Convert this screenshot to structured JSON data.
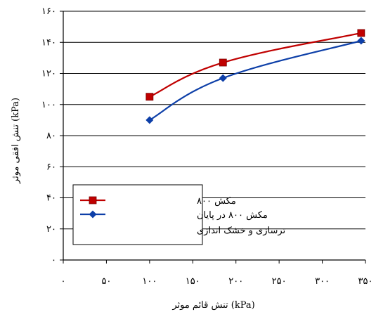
{
  "chart_data": {
    "type": "line",
    "title": "",
    "xlabel": "تنش قائم موثر (kPa)",
    "ylabel": "تنش افقی موثر (kPa)",
    "xlim": [
      0,
      350
    ],
    "ylim": [
      0,
      160
    ],
    "x_ticks": [
      0,
      50,
      100,
      150,
      200,
      250,
      300,
      350
    ],
    "x_tick_labels": [
      "۰",
      "۵۰",
      "۱۰۰",
      "۱۵۰",
      "۲۰۰",
      "۲۵۰",
      "۳۰۰",
      "۳۵۰"
    ],
    "y_ticks": [
      0,
      20,
      40,
      60,
      80,
      100,
      120,
      140,
      160
    ],
    "y_tick_labels": [
      "۰",
      "۲۰",
      "۴۰",
      "۶۰",
      "۸۰",
      "۱۰۰",
      "۱۲۰",
      "۱۴۰",
      "۱۶۰"
    ],
    "grid": "horizontal",
    "legend_position": "bottom-left",
    "series": [
      {
        "name": "مکش ۸۰۰",
        "name_lines": [
          "مکش ۸۰۰"
        ],
        "color": "#c00000",
        "marker": "square",
        "x": [
          100,
          185,
          345
        ],
        "y": [
          105,
          127,
          146
        ]
      },
      {
        "name": "مکش ۸۰۰ در پایان ترسازی و خشک اندازی",
        "name_lines": [
          "مکش ۸۰۰ در پایان",
          "ترسازی و خشک اندازی"
        ],
        "color": "#0d3fa8",
        "marker": "diamond",
        "x": [
          100,
          185,
          345
        ],
        "y": [
          90,
          117,
          141
        ]
      }
    ]
  }
}
